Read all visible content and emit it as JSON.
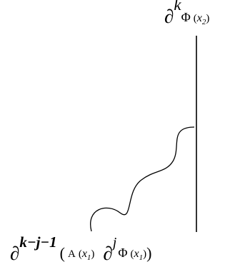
{
  "diagram": {
    "top_label": {
      "operator": "∂",
      "power": "k",
      "field": "Φ",
      "open": "(",
      "var": "x",
      "sub": "2",
      "close": ")"
    },
    "bottom_label": {
      "operator1": "∂",
      "power1": "k−j−1",
      "outer_open": "(",
      "field1": "A",
      "open1": "(",
      "var1": "x",
      "sub1": "1",
      "close1": ")",
      "operator2": "∂",
      "power2": "j",
      "field2": "Φ",
      "open2": "(",
      "var2": "x",
      "sub2": "1",
      "close2": ")",
      "outer_close": ")"
    }
  }
}
